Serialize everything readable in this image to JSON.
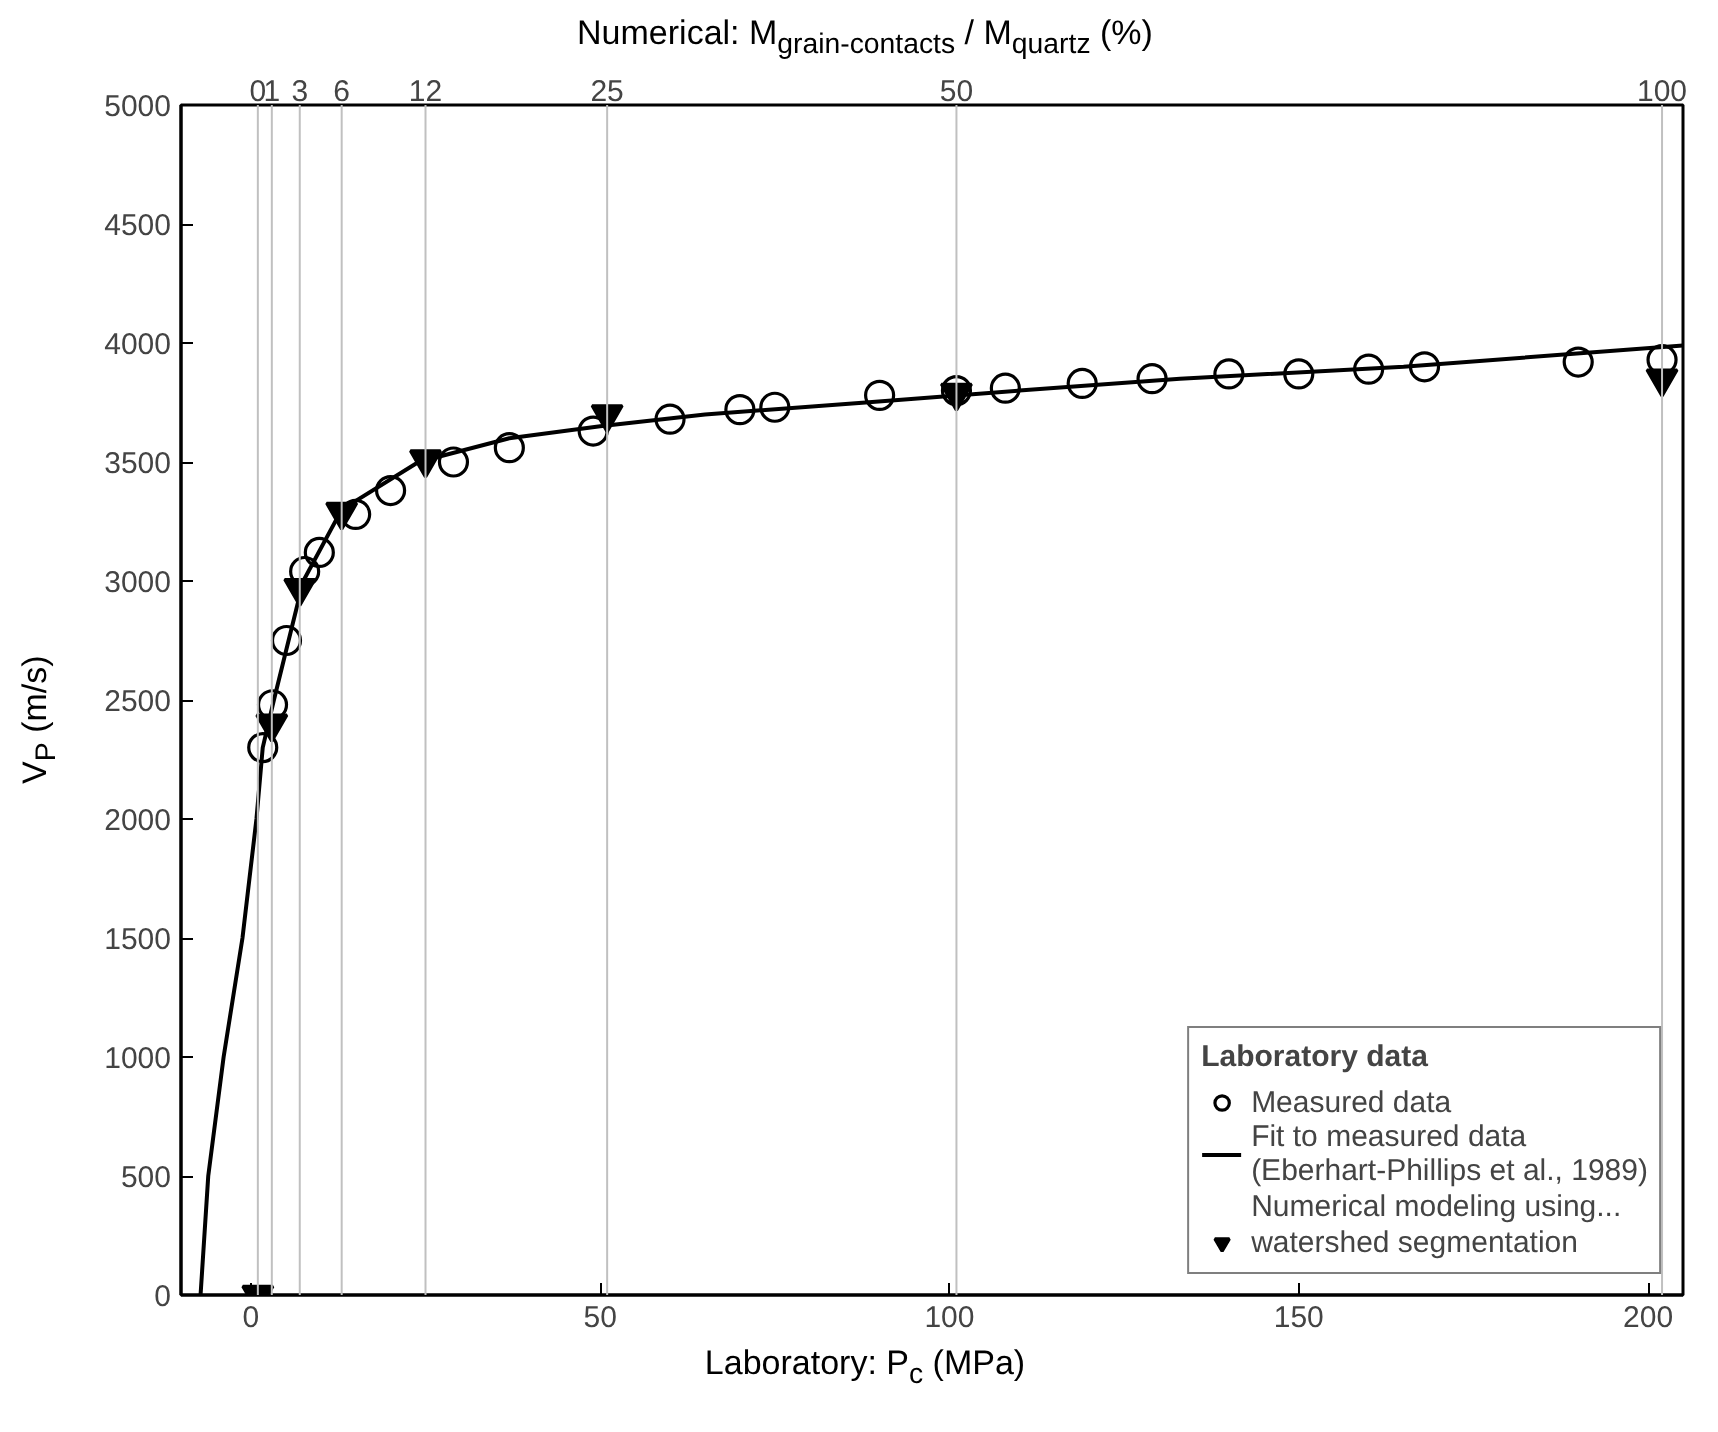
{
  "chart_data": {
    "type": "scatter",
    "xlabel": "Laboratory: P$_{c}$ (MPa)",
    "ylabel": "V$_{P}$ (m/s)",
    "x2label": "Numerical: M$_{grain-contacts}$ / M$_{quartz}$ (%)",
    "legend_title": "Laboratory data",
    "annotations": [
      "Numerical modeling using...",
      {
        "text": "0",
        "x": 1,
        "y": 5000
      },
      {
        "text": "1",
        "x": 3,
        "y": 5000
      },
      {
        "text": "3",
        "x": 7,
        "y": 5000
      },
      {
        "text": "6",
        "x": 13,
        "y": 5000
      },
      {
        "text": "12",
        "x": 25,
        "y": 5000
      },
      {
        "text": "25",
        "x": 51,
        "y": 5000
      },
      {
        "text": "50",
        "x": 101,
        "y": 5000
      },
      {
        "text": "100",
        "x": 202,
        "y": 5000
      }
    ],
    "xlim": [
      -10,
      205
    ],
    "xticks": [
      0,
      50,
      100,
      150,
      200
    ],
    "ylim": [
      0,
      5000
    ],
    "yticks": [
      0,
      500,
      1000,
      1500,
      2000,
      2500,
      3000,
      3500,
      4000,
      4500,
      5000
    ],
    "ref_lines": [
      {
        "axis": "x",
        "value": 1,
        "color": "#c0c0c0"
      },
      {
        "axis": "x",
        "value": 3,
        "color": "#c0c0c0"
      },
      {
        "axis": "x",
        "value": 7,
        "color": "#c0c0c0"
      },
      {
        "axis": "x",
        "value": 13,
        "color": "#c0c0c0"
      },
      {
        "axis": "x",
        "value": 25,
        "color": "#c0c0c0"
      },
      {
        "axis": "x",
        "value": 51,
        "color": "#c0c0c0"
      },
      {
        "axis": "x",
        "value": 101,
        "color": "#c0c0c0"
      },
      {
        "axis": "x",
        "value": 202,
        "color": "#c0c0c0"
      }
    ],
    "grid": false,
    "legend": "bottom right",
    "series": [
      {
        "name": "Measured data",
        "marker": "circle",
        "color": "#000000",
        "x": [
          1.7,
          3.1,
          5.1,
          7.7,
          9.8,
          15,
          20,
          29,
          37,
          49,
          60,
          70,
          75,
          90,
          101,
          108,
          119,
          129,
          140,
          150,
          160,
          168,
          190,
          202
        ],
        "values": [
          2300,
          2480,
          2750,
          3040,
          3120,
          3280,
          3380,
          3500,
          3560,
          3630,
          3680,
          3720,
          3730,
          3780,
          3800,
          3810,
          3830,
          3850,
          3870,
          3870,
          3890,
          3900,
          3920,
          3930
        ]
      },
      {
        "name": "Fit to measured data\n(Eberhart-Phillips et al., 1989)",
        "type": "line",
        "line_style": "solid",
        "color": "#000000",
        "x": [
          -7.2,
          -6.1,
          -3.9,
          -1.2,
          0.8,
          1.7,
          3.3,
          7.5,
          13,
          24,
          37,
          50,
          65,
          88,
          110,
          133,
          165,
          205
        ],
        "values": [
          0,
          500,
          1000,
          1500,
          2000,
          2300,
          2500,
          3000,
          3300,
          3500,
          3600,
          3650,
          3700,
          3750,
          3800,
          3850,
          3900,
          3990
        ]
      },
      {
        "name": "watershed segmentation",
        "marker": "triangle",
        "color": "#000000",
        "x": [
          1,
          3,
          7,
          13,
          25,
          51,
          101,
          202
        ],
        "values": [
          0,
          2400,
          2970,
          3290,
          3510,
          3700,
          3790,
          3850
        ]
      }
    ]
  }
}
